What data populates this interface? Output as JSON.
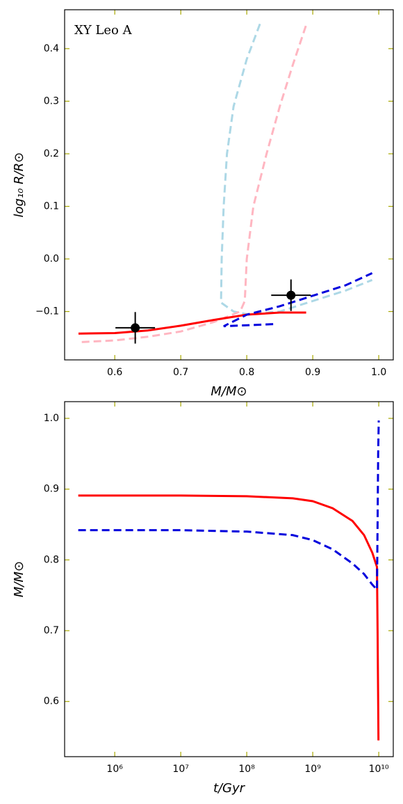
{
  "chart_data": [
    {
      "type": "line",
      "annotation": "XY Leo A",
      "xlabel": "M/M⊙",
      "ylabel": "log₁₀ R/R⊙",
      "xlim": [
        0.524,
        1.022
      ],
      "ylim": [
        -0.192,
        0.474
      ],
      "xticks": [
        0.6,
        0.7,
        0.8,
        0.9,
        1.0
      ],
      "yticks": [
        -0.1,
        0.0,
        0.1,
        0.2,
        0.3,
        0.4
      ],
      "xtick_labels": [
        "0.6",
        "0.7",
        "0.8",
        "0.9",
        "1.0"
      ],
      "ytick_labels": [
        "−0.1",
        "0.0",
        "0.1",
        "0.2",
        "0.3",
        "0.4"
      ],
      "series": [
        {
          "color": "#add8e6",
          "dash": true,
          "x": [
            0.82,
            0.8,
            0.78,
            0.77,
            0.765,
            0.762,
            0.761,
            0.78,
            0.8,
            0.85,
            0.9,
            0.95,
            0.99
          ],
          "values": [
            0.447,
            0.38,
            0.29,
            0.2,
            0.1,
            0.0,
            -0.083,
            -0.1,
            -0.105,
            -0.1,
            -0.08,
            -0.06,
            -0.04
          ]
        },
        {
          "color": "#ffb6c1",
          "dash": true,
          "x": [
            0.55,
            0.6,
            0.65,
            0.7,
            0.75,
            0.79,
            0.797,
            0.8,
            0.81,
            0.83,
            0.85,
            0.87,
            0.89
          ],
          "values": [
            -0.158,
            -0.155,
            -0.148,
            -0.138,
            -0.12,
            -0.1,
            -0.08,
            0.0,
            0.1,
            0.2,
            0.29,
            0.37,
            0.445
          ]
        },
        {
          "color": "#ff0000",
          "dash": false,
          "x": [
            0.545,
            0.6,
            0.65,
            0.7,
            0.75,
            0.8,
            0.85,
            0.89
          ],
          "values": [
            -0.142,
            -0.141,
            -0.136,
            -0.127,
            -0.116,
            -0.106,
            -0.102,
            -0.102
          ]
        },
        {
          "color": "#0000dd",
          "dash": true,
          "x": [
            0.84,
            0.765,
            0.8,
            0.85,
            0.9,
            0.95,
            0.99
          ],
          "values": [
            -0.124,
            -0.128,
            -0.106,
            -0.09,
            -0.07,
            -0.05,
            -0.027
          ]
        }
      ],
      "points": {
        "color": "#000000",
        "x": [
          0.631,
          0.867
        ],
        "y": [
          -0.131,
          -0.069
        ],
        "xerr": [
          0.03,
          0.03
        ],
        "yerr": [
          0.03,
          0.03
        ]
      }
    },
    {
      "type": "line",
      "xlabel": "t/Gyr",
      "ylabel": "M/M⊙",
      "xscale": "log",
      "xlim": [
        174000,
        16600000000
      ],
      "ylim": [
        0.522,
        1.0236
      ],
      "xticks": [
        {
          "value": 1000000,
          "label": "10⁶"
        },
        {
          "value": 10000000,
          "label": "10⁷"
        },
        {
          "value": 100000000,
          "label": "10⁸"
        },
        {
          "value": 1000000000,
          "label": "10⁹"
        },
        {
          "value": 10000000000,
          "label": "10¹⁰"
        }
      ],
      "yticks": [
        0.6,
        0.7,
        0.8,
        0.9,
        1.0
      ],
      "ytick_labels": [
        "0.6",
        "0.7",
        "0.8",
        "0.9",
        "1.0"
      ],
      "series": [
        {
          "color": "#ff0000",
          "dash": false,
          "x": [
            280000,
            10000000,
            100000000,
            500000000,
            1000000000,
            2000000000,
            4000000000,
            6000000000,
            8000000000,
            9400000000,
            9600000000,
            9800000000,
            9900000000
          ],
          "values": [
            0.891,
            0.891,
            0.89,
            0.887,
            0.883,
            0.873,
            0.855,
            0.835,
            0.81,
            0.79,
            0.7,
            0.6,
            0.545
          ]
        },
        {
          "color": "#0000dd",
          "dash": true,
          "x": [
            280000,
            10000000,
            100000000,
            500000000,
            1000000000,
            2000000000,
            4000000000,
            6000000000,
            8000000000,
            9400000000,
            9600000000,
            9800000000,
            10000000000
          ],
          "values": [
            0.842,
            0.842,
            0.84,
            0.835,
            0.828,
            0.815,
            0.795,
            0.78,
            0.765,
            0.758,
            0.85,
            0.95,
            0.997
          ]
        }
      ]
    }
  ]
}
